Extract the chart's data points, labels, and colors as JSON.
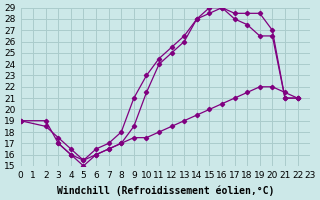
{
  "xlabel": "Windchill (Refroidissement éolien,°C)",
  "bg_color": "#cce8e8",
  "line_color": "#800080",
  "grid_color": "#aacccc",
  "xlim": [
    0,
    23
  ],
  "ylim": [
    15,
    29
  ],
  "xticks": [
    0,
    1,
    2,
    3,
    4,
    5,
    6,
    7,
    8,
    9,
    10,
    11,
    12,
    13,
    14,
    15,
    16,
    17,
    18,
    19,
    20,
    21,
    22,
    23
  ],
  "yticks": [
    15,
    16,
    17,
    18,
    19,
    20,
    21,
    22,
    23,
    24,
    25,
    26,
    27,
    28,
    29
  ],
  "curve1_x": [
    0,
    2,
    3,
    4,
    5,
    6,
    7,
    8,
    9,
    10,
    11,
    12,
    13,
    14,
    15,
    16,
    17,
    18,
    19,
    20,
    21,
    22
  ],
  "curve1_y": [
    19,
    19,
    17,
    16,
    15,
    16,
    16.5,
    17,
    18.5,
    21.5,
    24,
    25,
    26,
    28,
    29,
    29,
    28.5,
    28.5,
    28.5,
    27,
    21,
    21
  ],
  "curve2_x": [
    3,
    4,
    5,
    6,
    7,
    8,
    9,
    10,
    11,
    12,
    13,
    14,
    15,
    16,
    17,
    18,
    19,
    20,
    21,
    22
  ],
  "curve2_y": [
    17,
    16,
    15.5,
    16.5,
    17,
    18,
    21,
    23,
    24.5,
    25.5,
    26.5,
    28,
    28.5,
    29,
    28,
    27.5,
    26.5,
    26.5,
    21,
    21
  ],
  "curve3_x": [
    0,
    2,
    3,
    4,
    5,
    6,
    7,
    8,
    9,
    10,
    11,
    12,
    13,
    14,
    15,
    16,
    17,
    18,
    19,
    20,
    21,
    22
  ],
  "curve3_y": [
    19,
    18.5,
    17.5,
    16.5,
    15.5,
    16,
    16.5,
    17,
    17.5,
    17.5,
    18,
    18.5,
    19,
    19.5,
    20,
    20.5,
    21,
    21.5,
    22,
    22,
    21.5,
    21
  ],
  "tick_fontsize": 6.5,
  "xlabel_fontsize": 7
}
